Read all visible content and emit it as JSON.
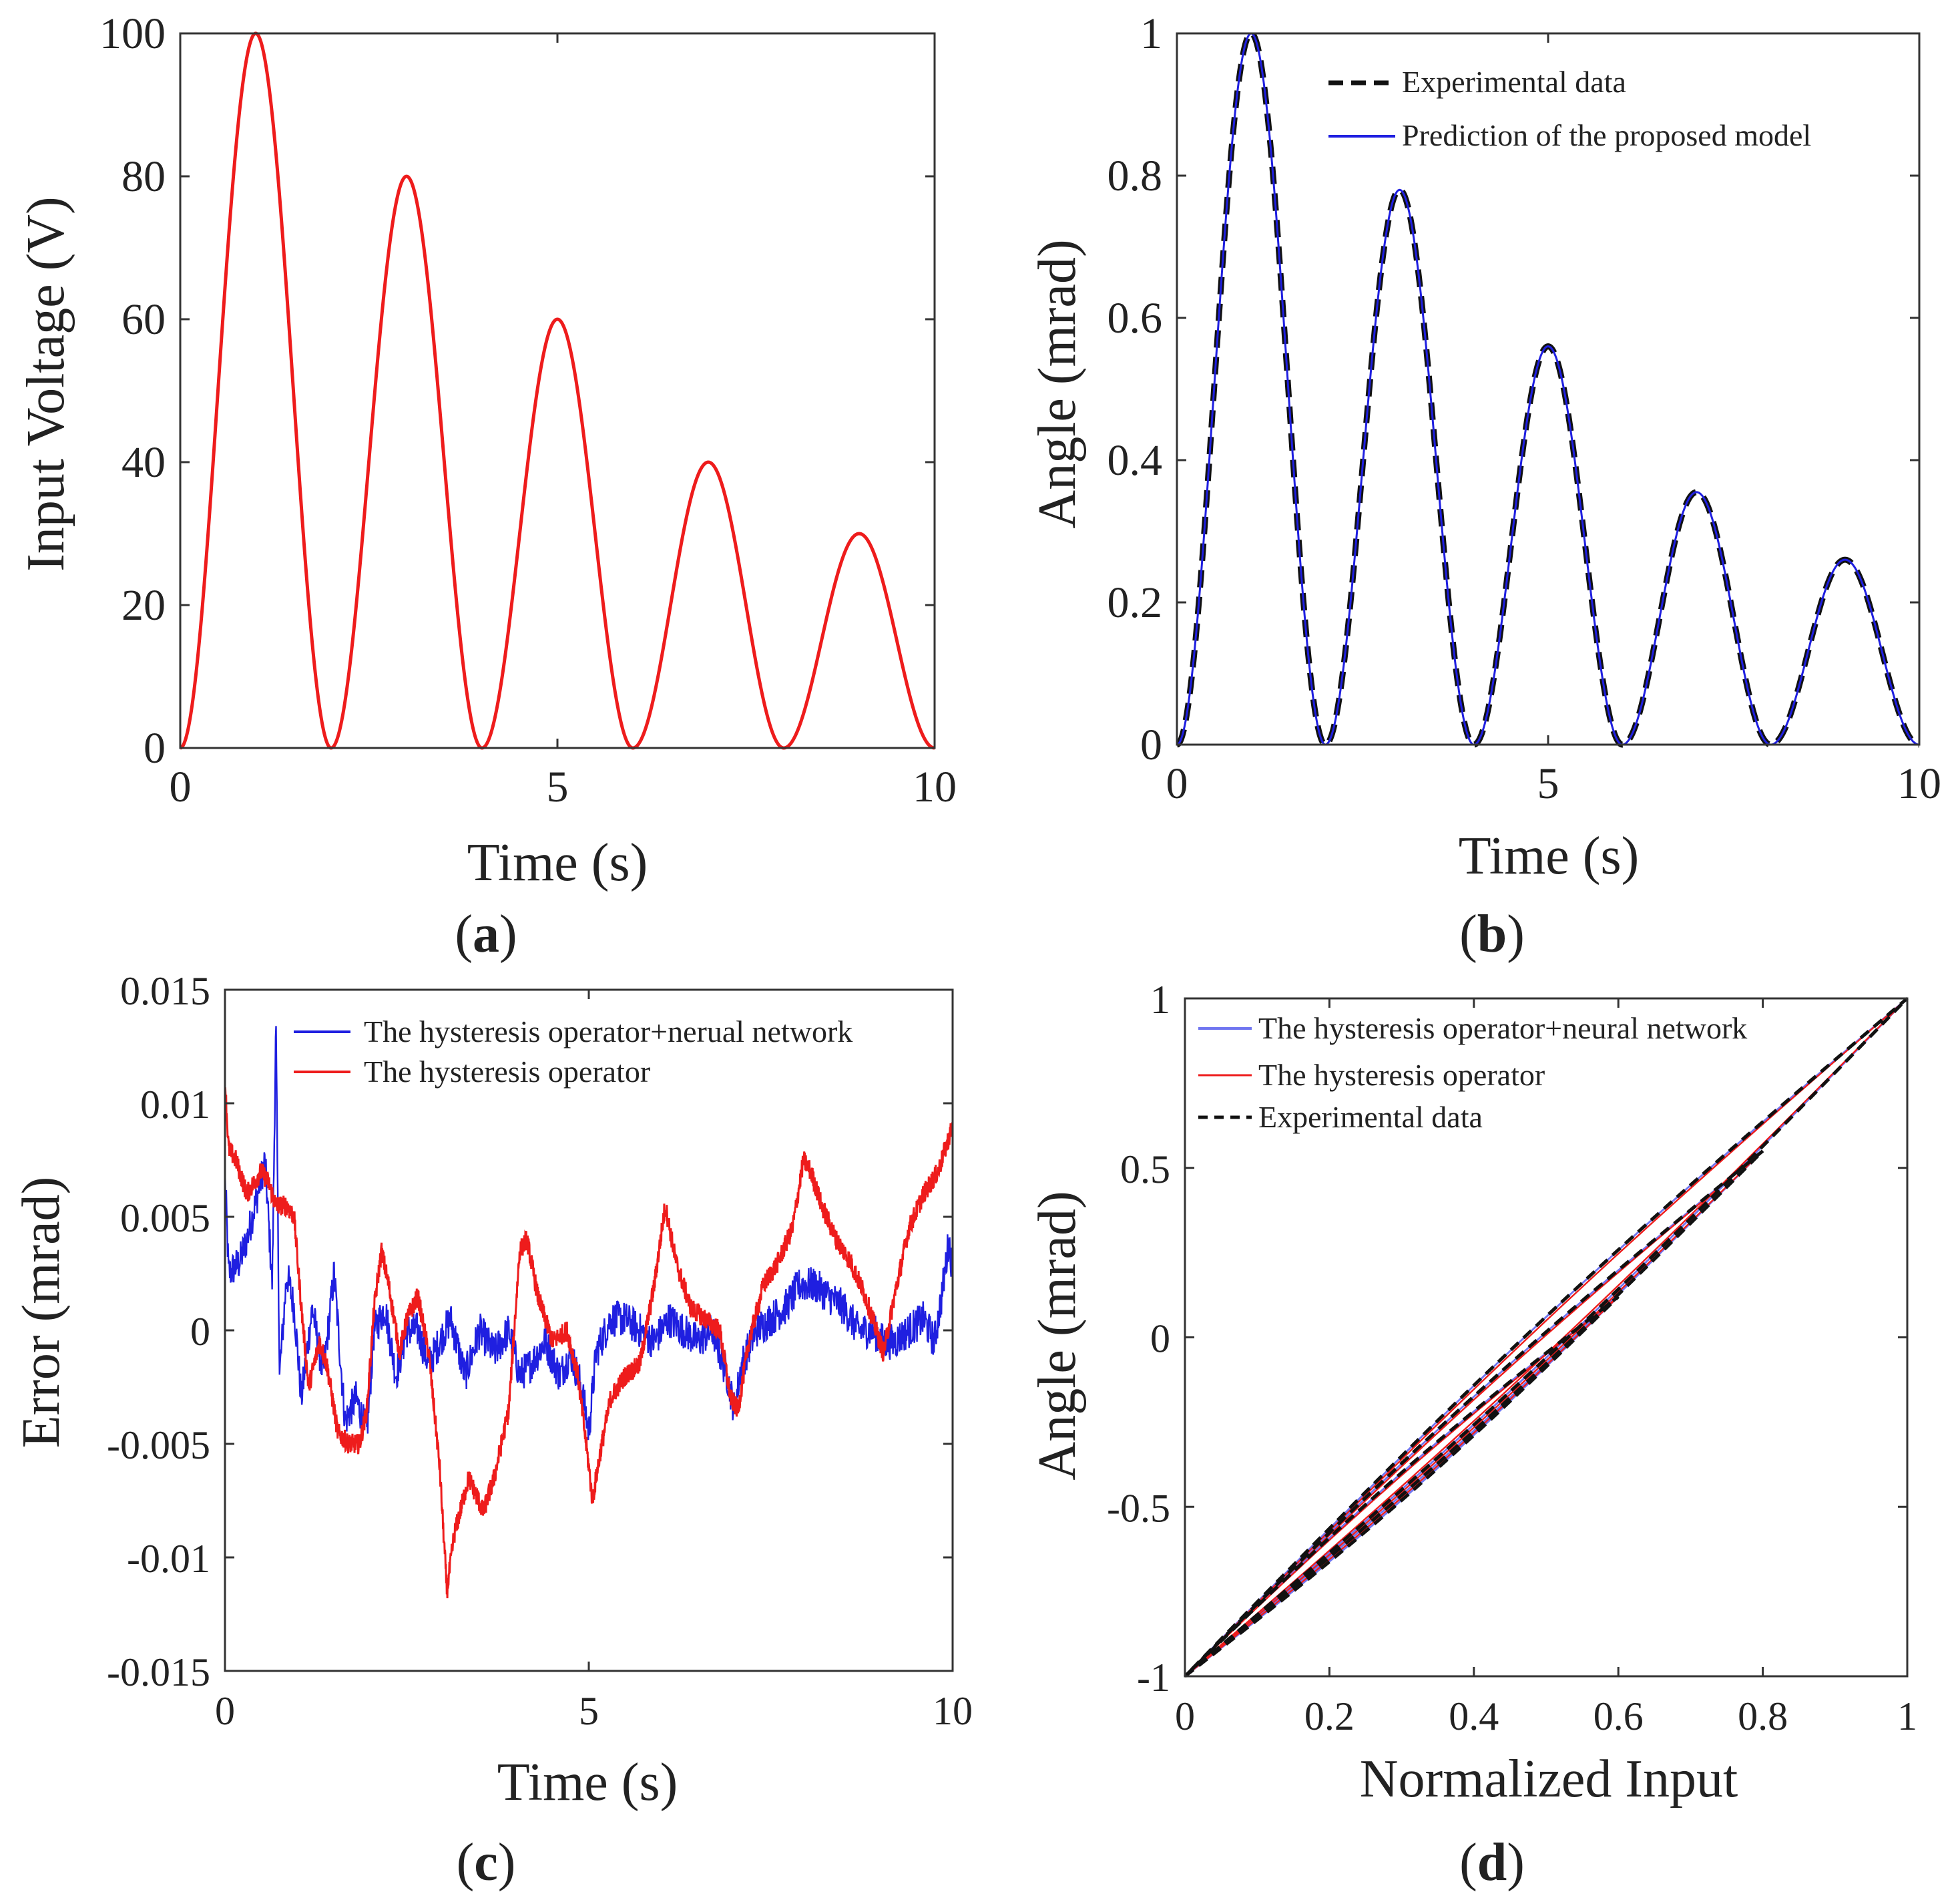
{
  "colors": {
    "red": "#ee1c1c",
    "blue": "#1f1fe0",
    "blue_light": "#6f75f0",
    "black": "#111111",
    "axis": "#333333"
  },
  "chart_data": [
    {
      "id": "a",
      "type": "line",
      "caption": "a",
      "title": "",
      "xlabel": "Time (s)",
      "ylabel": "Input Voltage (V)",
      "xlim": [
        0,
        10
      ],
      "ylim": [
        0,
        100
      ],
      "xticks": [
        "0",
        "5",
        "10"
      ],
      "yticks": [
        "0",
        "20",
        "40",
        "60",
        "80",
        "100"
      ],
      "series": [
        {
          "name": "Input voltage",
          "color": "red",
          "description": "piecewise raised-cosine pulses, period 2 s",
          "peaks": [
            {
              "t": 1,
              "value": 100
            },
            {
              "t": 3,
              "value": 80
            },
            {
              "t": 5,
              "value": 60
            },
            {
              "t": 7,
              "value": 40
            },
            {
              "t": 9,
              "value": 30
            }
          ]
        }
      ]
    },
    {
      "id": "b",
      "type": "line",
      "caption": "b",
      "title": "",
      "xlabel": "Time (s)",
      "ylabel": "Angle (mrad)",
      "xlim": [
        0,
        10
      ],
      "ylim": [
        0,
        1
      ],
      "xticks": [
        "0",
        "5",
        "10"
      ],
      "yticks": [
        "0",
        "0.2",
        "0.4",
        "0.6",
        "0.8",
        "1"
      ],
      "legend": [
        "Experimental data",
        "Prediction of the proposed model"
      ],
      "series": [
        {
          "name": "Experimental data",
          "color": "black",
          "style": "dashed",
          "peaks": [
            {
              "t": 1,
              "value": 1.0
            },
            {
              "t": 3,
              "value": 0.78
            },
            {
              "t": 5,
              "value": 0.56
            },
            {
              "t": 7,
              "value": 0.355
            },
            {
              "t": 9,
              "value": 0.26
            }
          ]
        },
        {
          "name": "Prediction of the proposed model",
          "color": "blue",
          "style": "solid",
          "peaks": [
            {
              "t": 1,
              "value": 1.0
            },
            {
              "t": 3,
              "value": 0.78
            },
            {
              "t": 5,
              "value": 0.56
            },
            {
              "t": 7,
              "value": 0.355
            },
            {
              "t": 9,
              "value": 0.26
            }
          ]
        }
      ]
    },
    {
      "id": "c",
      "type": "line",
      "caption": "c",
      "title": "",
      "xlabel": "Time (s)",
      "ylabel": "Error (mrad)",
      "xlim": [
        0,
        10
      ],
      "ylim": [
        -0.015,
        0.015
      ],
      "xticks": [
        "0",
        "5",
        "10"
      ],
      "yticks": [
        "-0.015",
        "-0.01",
        "-0.005",
        "0",
        "0.005",
        "0.01",
        "0.015"
      ],
      "legend": [
        "The hysteresis operator+nerual network",
        "The hysteresis operator"
      ],
      "series": [
        {
          "name": "The hysteresis operator",
          "color": "red",
          "noise": 0.00045,
          "points": [
            [
              0,
              0.011
            ],
            [
              0.05,
              0.008
            ],
            [
              0.15,
              0.0075
            ],
            [
              0.3,
              0.006
            ],
            [
              0.5,
              0.007
            ],
            [
              0.6,
              0.0065
            ],
            [
              0.7,
              0.0055
            ],
            [
              0.85,
              0.0055
            ],
            [
              0.95,
              0.005
            ],
            [
              1.05,
              0.001
            ],
            [
              1.15,
              -0.0025
            ],
            [
              1.3,
              -0.0005
            ],
            [
              1.4,
              -0.0015
            ],
            [
              1.55,
              -0.0045
            ],
            [
              1.7,
              -0.005
            ],
            [
              1.85,
              -0.005
            ],
            [
              1.95,
              -0.0035
            ],
            [
              2.05,
              0.001
            ],
            [
              2.15,
              0.0035
            ],
            [
              2.25,
              0.002
            ],
            [
              2.4,
              -0.001
            ],
            [
              2.5,
              0.0005
            ],
            [
              2.65,
              0.0015
            ],
            [
              2.8,
              -0.001
            ],
            [
              2.95,
              -0.006
            ],
            [
              3.05,
              -0.0115
            ],
            [
              3.15,
              -0.009
            ],
            [
              3.35,
              -0.0065
            ],
            [
              3.55,
              -0.008
            ],
            [
              3.7,
              -0.0065
            ],
            [
              3.9,
              -0.0035
            ],
            [
              4.05,
              0.0035
            ],
            [
              4.15,
              0.004
            ],
            [
              4.3,
              0.0015
            ],
            [
              4.5,
              -0.0005
            ],
            [
              4.7,
              0.0
            ],
            [
              4.85,
              -0.002
            ],
            [
              5.0,
              -0.006
            ],
            [
              5.05,
              -0.0075
            ],
            [
              5.15,
              -0.0055
            ],
            [
              5.3,
              -0.003
            ],
            [
              5.5,
              -0.002
            ],
            [
              5.7,
              -0.0015
            ],
            [
              5.9,
              0.002
            ],
            [
              6.05,
              0.0055
            ],
            [
              6.2,
              0.003
            ],
            [
              6.4,
              0.001
            ],
            [
              6.6,
              0.0005
            ],
            [
              6.8,
              0.0
            ],
            [
              6.95,
              -0.003
            ],
            [
              7.05,
              -0.0035
            ],
            [
              7.2,
              -0.0005
            ],
            [
              7.4,
              0.002
            ],
            [
              7.6,
              0.003
            ],
            [
              7.8,
              0.0045
            ],
            [
              7.95,
              0.0075
            ],
            [
              8.05,
              0.007
            ],
            [
              8.2,
              0.0055
            ],
            [
              8.4,
              0.004
            ],
            [
              8.6,
              0.003
            ],
            [
              8.8,
              0.0015
            ],
            [
              9.0,
              -0.0005
            ],
            [
              9.05,
              -0.001
            ],
            [
              9.2,
              0.0015
            ],
            [
              9.4,
              0.0045
            ],
            [
              9.6,
              0.006
            ],
            [
              9.8,
              0.007
            ],
            [
              9.95,
              0.0085
            ],
            [
              10.0,
              0.009
            ]
          ]
        },
        {
          "name": "The hysteresis operator+nerual network",
          "color": "blue",
          "noise": 0.0008,
          "points": [
            [
              0,
              0.007
            ],
            [
              0.05,
              0.0025
            ],
            [
              0.2,
              0.003
            ],
            [
              0.3,
              0.004
            ],
            [
              0.45,
              0.006
            ],
            [
              0.55,
              0.0075
            ],
            [
              0.65,
              0.002
            ],
            [
              0.7,
              0.0135
            ],
            [
              0.75,
              -0.002
            ],
            [
              0.85,
              0.0025
            ],
            [
              0.95,
              0.001
            ],
            [
              1.05,
              -0.003
            ],
            [
              1.2,
              0.001
            ],
            [
              1.35,
              -0.002
            ],
            [
              1.5,
              0.0025
            ],
            [
              1.65,
              -0.004
            ],
            [
              1.8,
              -0.003
            ],
            [
              1.95,
              -0.0045
            ],
            [
              2.05,
              0.0
            ],
            [
              2.2,
              0.001
            ],
            [
              2.35,
              -0.002
            ],
            [
              2.5,
              0.0
            ],
            [
              2.65,
              0.0
            ],
            [
              2.8,
              -0.0015
            ],
            [
              2.95,
              -0.0005
            ],
            [
              3.1,
              0.0005
            ],
            [
              3.3,
              -0.002
            ],
            [
              3.5,
              0.0
            ],
            [
              3.7,
              -0.001
            ],
            [
              3.9,
              0.0
            ],
            [
              4.05,
              -0.002
            ],
            [
              4.2,
              -0.0015
            ],
            [
              4.4,
              -0.0005
            ],
            [
              4.6,
              -0.002
            ],
            [
              4.75,
              -0.001
            ],
            [
              4.9,
              -0.0025
            ],
            [
              5.0,
              -0.0045
            ],
            [
              5.1,
              -0.001
            ],
            [
              5.3,
              0.0005
            ],
            [
              5.5,
              0.0005
            ],
            [
              5.7,
              0.0
            ],
            [
              5.9,
              -0.0005
            ],
            [
              6.1,
              0.0005
            ],
            [
              6.3,
              0.0
            ],
            [
              6.5,
              -0.0005
            ],
            [
              6.7,
              0.0
            ],
            [
              6.9,
              -0.002
            ],
            [
              7.0,
              -0.0035
            ],
            [
              7.1,
              -0.0015
            ],
            [
              7.3,
              0.0
            ],
            [
              7.5,
              0.0005
            ],
            [
              7.7,
              0.001
            ],
            [
              7.9,
              0.002
            ],
            [
              8.1,
              0.002
            ],
            [
              8.3,
              0.0015
            ],
            [
              8.5,
              0.001
            ],
            [
              8.7,
              0.0
            ],
            [
              8.9,
              0.0
            ],
            [
              9.05,
              -0.0005
            ],
            [
              9.2,
              -0.0005
            ],
            [
              9.4,
              0.0
            ],
            [
              9.6,
              0.0005
            ],
            [
              9.75,
              -0.0005
            ],
            [
              9.85,
              0.0015
            ],
            [
              9.95,
              0.004
            ],
            [
              10.0,
              0.0025
            ]
          ]
        }
      ]
    },
    {
      "id": "d",
      "type": "line",
      "caption": "d",
      "title": "",
      "xlabel": "Normalized Input",
      "ylabel": "Angle (mrad)",
      "xlim": [
        0,
        1
      ],
      "ylim": [
        -1,
        1
      ],
      "xticks": [
        "0",
        "0.2",
        "0.4",
        "0.6",
        "0.8",
        "1"
      ],
      "yticks": [
        "-1",
        "-0.5",
        "0",
        "0.5",
        "1"
      ],
      "legend": [
        "The hysteresis operator+neural network",
        "The hysteresis operator",
        "Experimental data"
      ],
      "loops": [
        {
          "x_max": 1.0,
          "y_max": 1.0,
          "bulge": 0.12
        },
        {
          "x_max": 0.8,
          "y_max": 0.55,
          "bulge": 0.1
        },
        {
          "x_max": 0.6,
          "y_max": 0.12,
          "bulge": 0.08
        }
      ],
      "series": [
        {
          "name": "The hysteresis operator+neural network",
          "color": "blue_light",
          "style": "solid",
          "bulge_scale": 1.0
        },
        {
          "name": "The hysteresis operator",
          "color": "red",
          "style": "solid",
          "bulge_scale": 0.82
        },
        {
          "name": "Experimental data",
          "color": "black",
          "style": "dashed",
          "bulge_scale": 1.02
        }
      ]
    }
  ]
}
